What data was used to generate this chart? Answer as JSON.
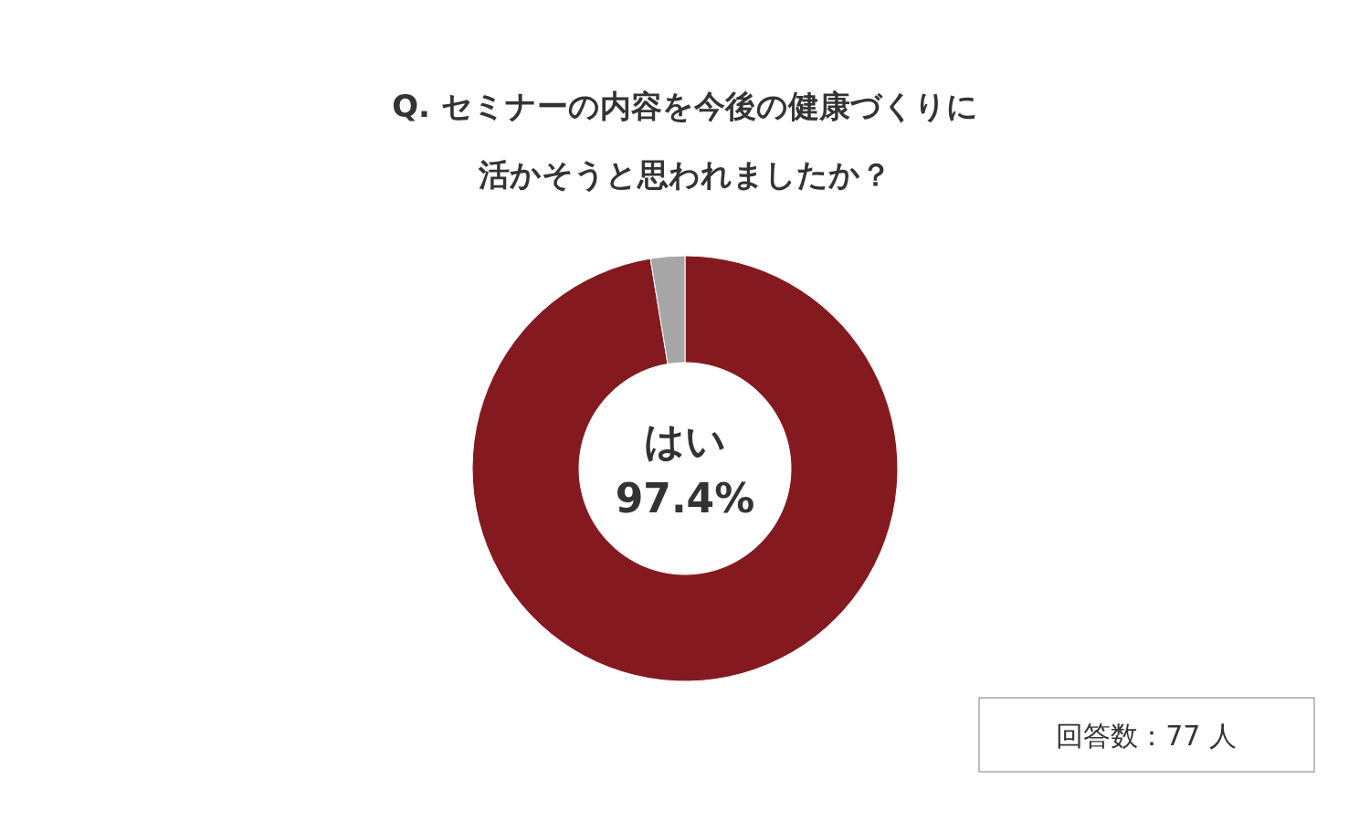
{
  "chart_data": {
    "type": "donut",
    "title": "Q. セミナーの内容を今後の健康づくりに",
    "subtitle": "活かそうと思われましたか？",
    "categories": [
      "はい",
      null
    ],
    "values": [
      97.4,
      2.6
    ],
    "value_labels": [
      "97.4%",
      null
    ],
    "colors": [
      "#841a20",
      "#a6a6a6"
    ],
    "annotations": [
      "回答数：77 人"
    ]
  }
}
